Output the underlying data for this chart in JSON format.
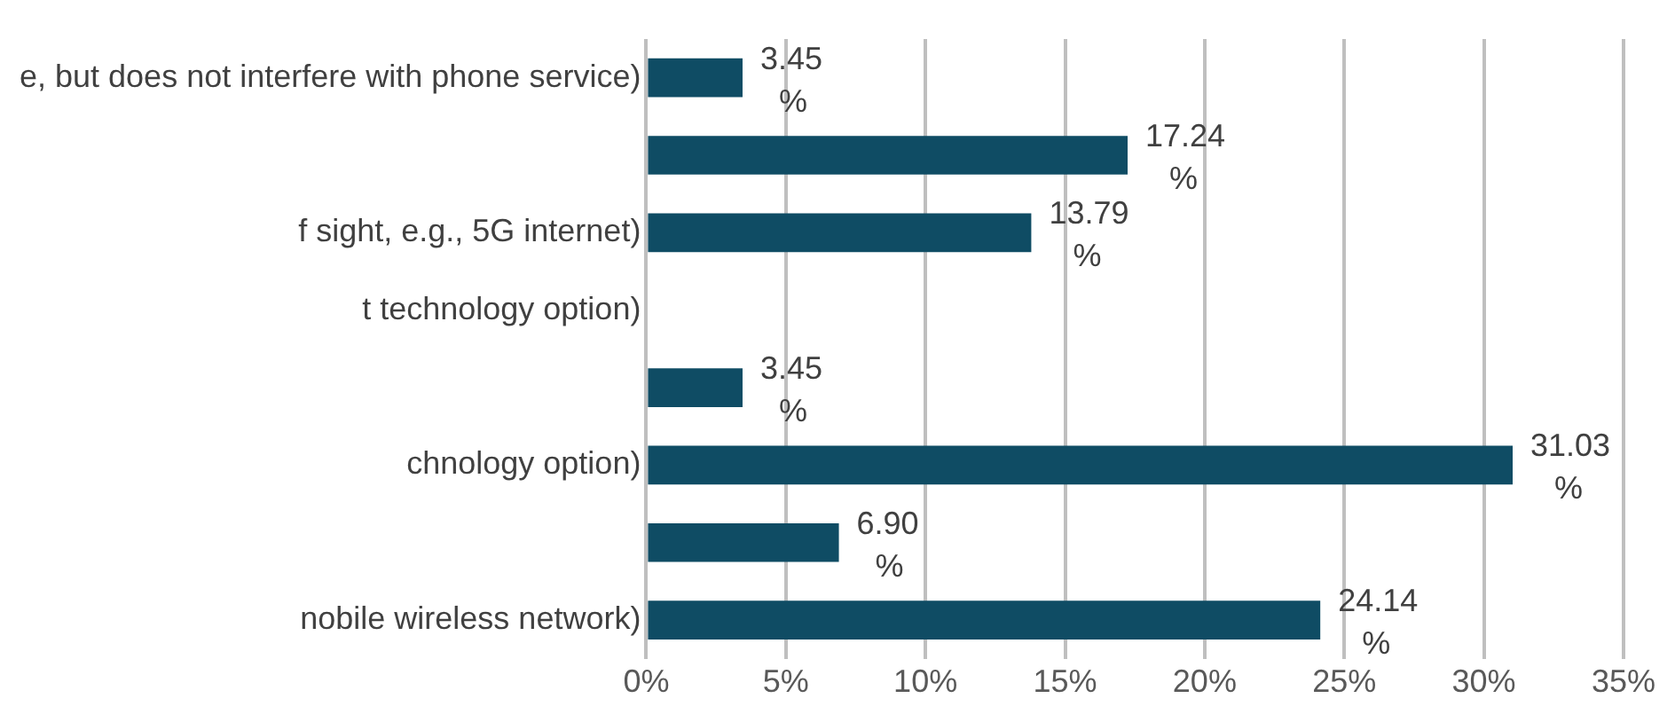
{
  "chart_data": {
    "type": "bar",
    "orientation": "horizontal",
    "categories": [
      "e, but does not interfere with phone service)",
      null,
      "f sight, e.g., 5G internet)",
      "t technology option)",
      null,
      "chnology option)",
      null,
      "nobile wireless network)"
    ],
    "values": [
      3.45,
      17.24,
      13.79,
      null,
      3.45,
      31.03,
      6.9,
      24.14
    ],
    "value_labels": [
      "3.45%",
      "17.24%",
      "13.79%",
      null,
      "3.45%",
      "31.03%",
      "6.90%",
      "24.14%"
    ],
    "color": "#0f4c64",
    "xlim": [
      0,
      35
    ],
    "xticks": [
      {
        "value": 0,
        "label": "0%"
      },
      {
        "value": 5,
        "label": "5%"
      },
      {
        "value": 10,
        "label": "10%"
      },
      {
        "value": 15,
        "label": "15%"
      },
      {
        "value": 20,
        "label": "20%"
      },
      {
        "value": 25,
        "label": "25%"
      },
      {
        "value": 30,
        "label": "30%"
      },
      {
        "value": 35,
        "label": "35%"
      }
    ],
    "grid": "x",
    "legend": false
  }
}
